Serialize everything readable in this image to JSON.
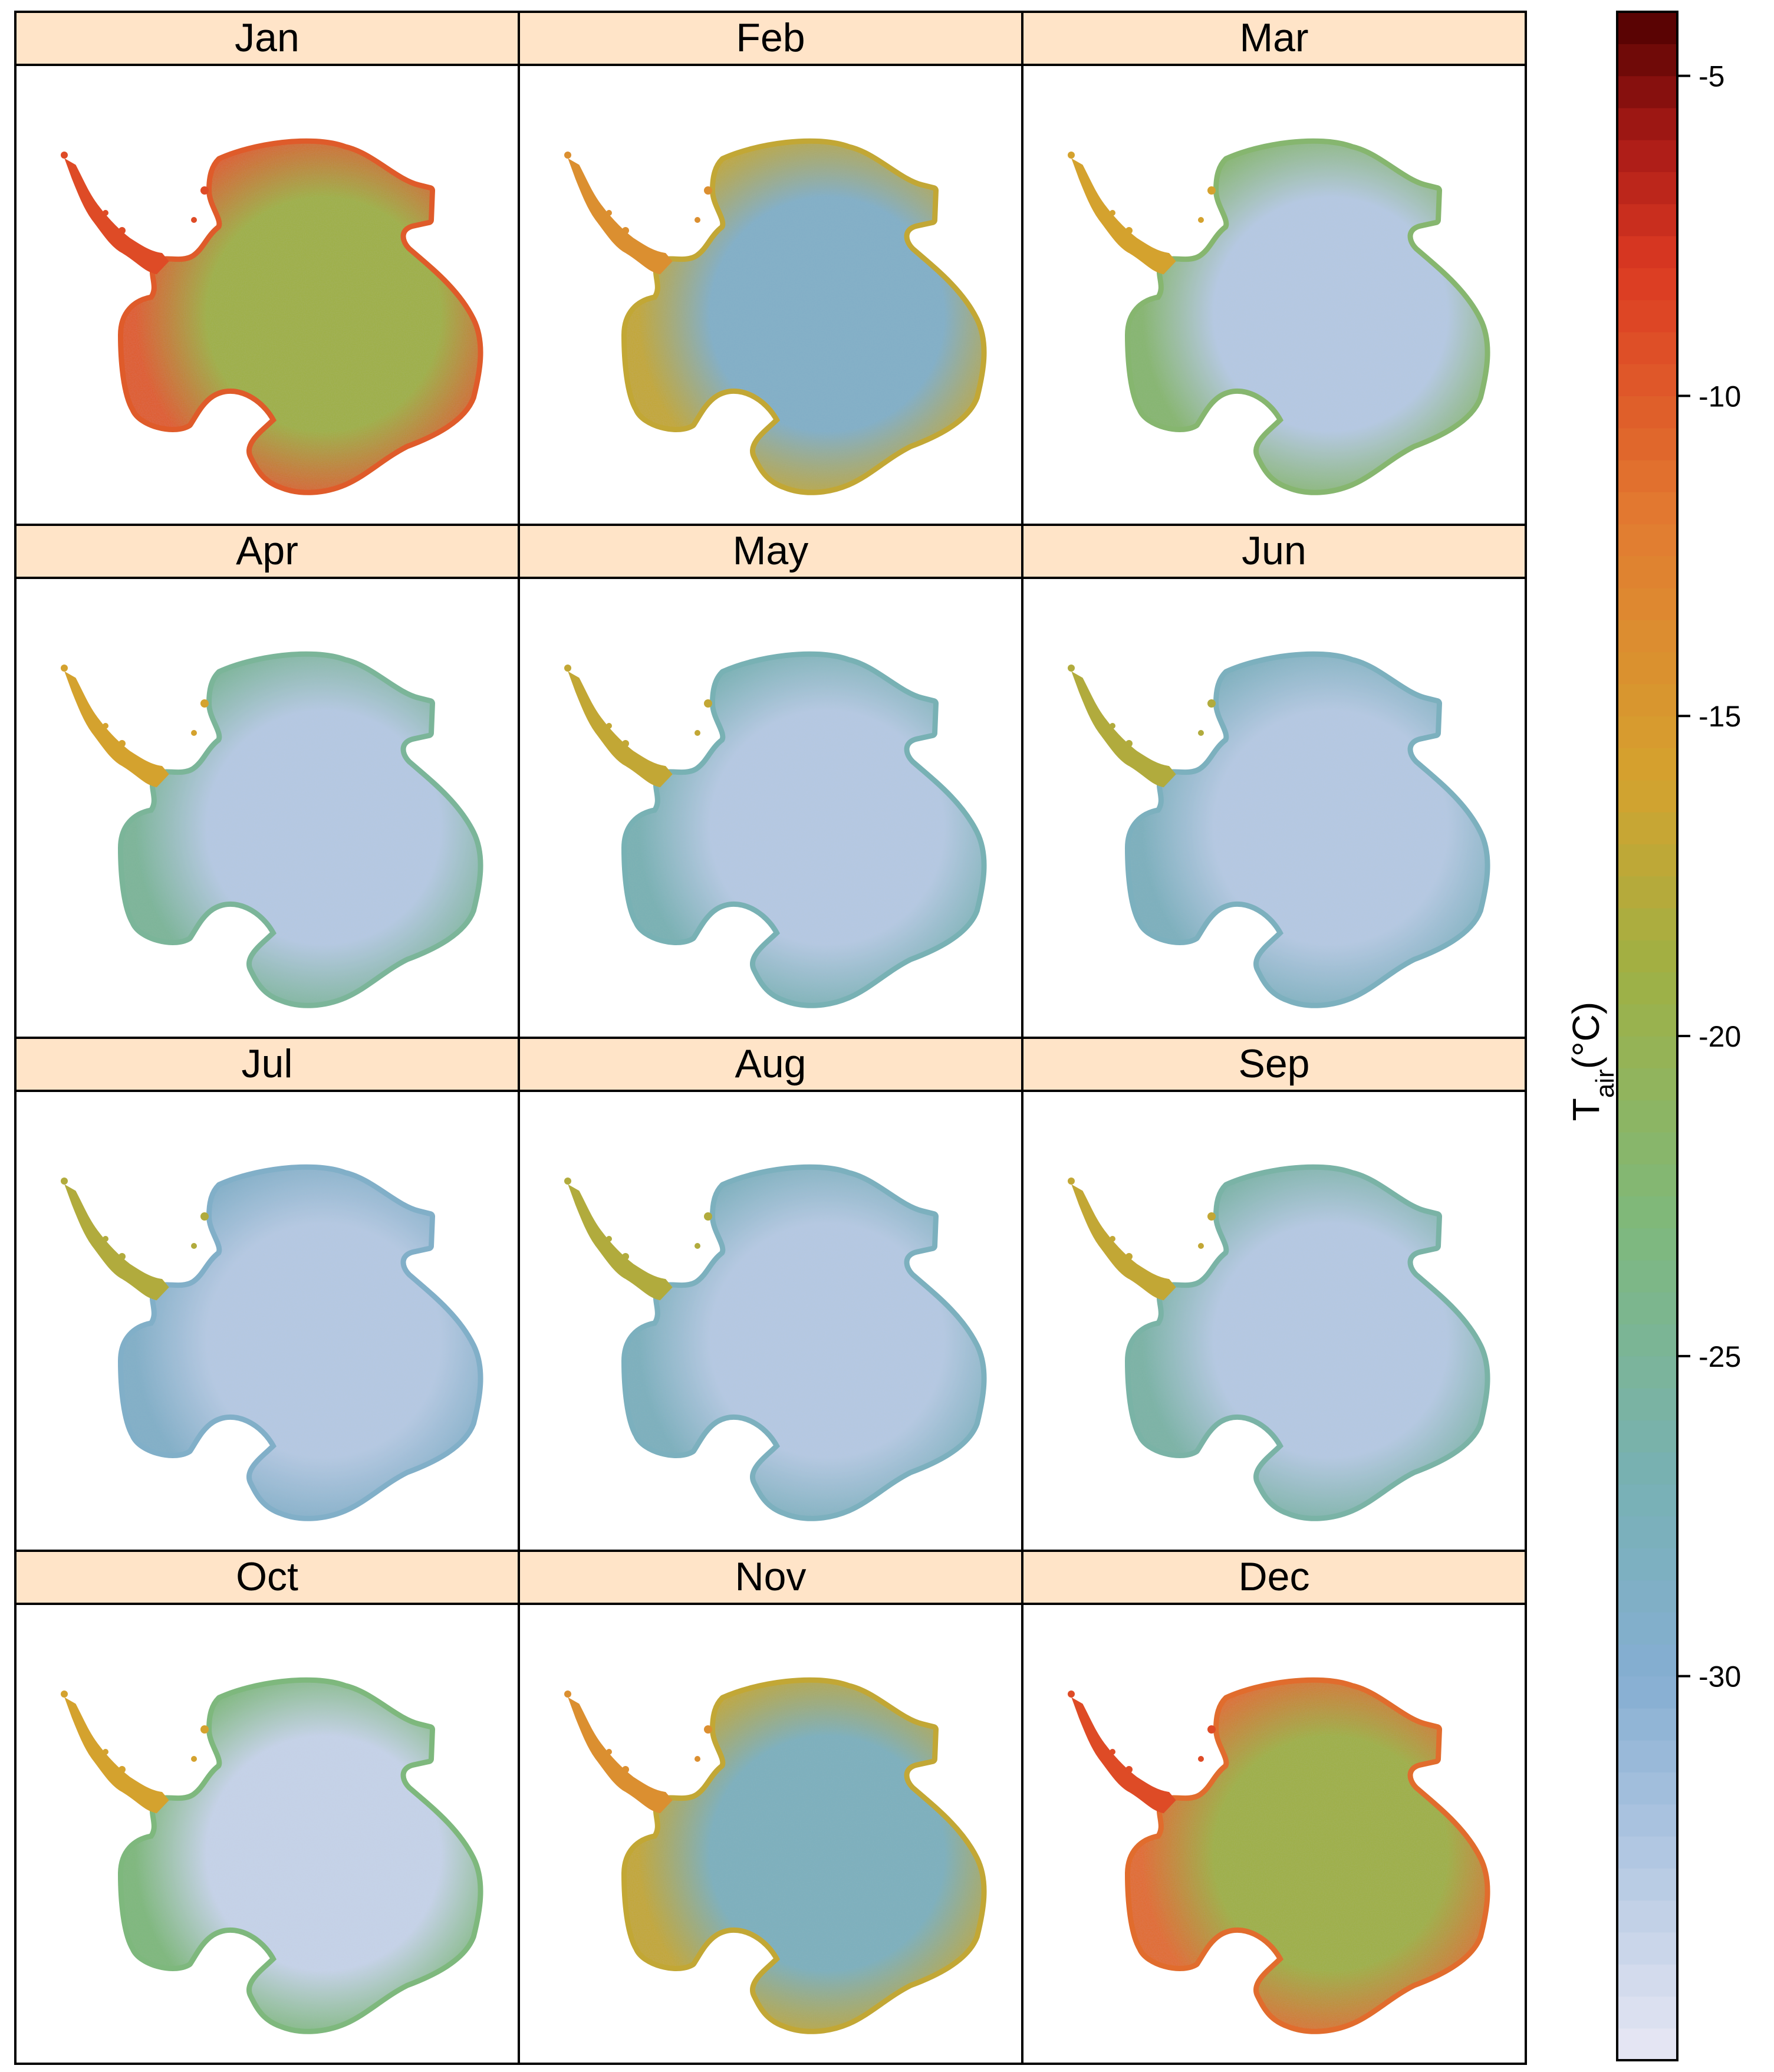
{
  "chart_data": {
    "type": "heatmap",
    "layout": "lattice small multiples, 4 rows x 3 columns",
    "panels": [
      {
        "label": "Jan",
        "interior_level": -19,
        "coast_level": -10,
        "peninsula_level": -9
      },
      {
        "label": "Feb",
        "interior_level": -29,
        "coast_level": -17,
        "peninsula_level": -14
      },
      {
        "label": "Mar",
        "interior_level": -33,
        "coast_level": -22,
        "peninsula_level": -16
      },
      {
        "label": "Apr",
        "interior_level": -33,
        "coast_level": -25,
        "peninsula_level": -16
      },
      {
        "label": "May",
        "interior_level": -33,
        "coast_level": -27,
        "peninsula_level": -17
      },
      {
        "label": "Jun",
        "interior_level": -33,
        "coast_level": -28,
        "peninsula_level": -18
      },
      {
        "label": "Jul",
        "interior_level": -33,
        "coast_level": -29,
        "peninsula_level": -18
      },
      {
        "label": "Aug",
        "interior_level": -33,
        "coast_level": -28,
        "peninsula_level": -18
      },
      {
        "label": "Sep",
        "interior_level": -33,
        "coast_level": -26,
        "peninsula_level": -17
      },
      {
        "label": "Oct",
        "interior_level": -34,
        "coast_level": -23,
        "peninsula_level": -16
      },
      {
        "label": "Nov",
        "interior_level": -28,
        "coast_level": -17,
        "peninsula_level": -14
      },
      {
        "label": "Dec",
        "interior_level": -19,
        "coast_level": -11,
        "peninsula_level": -9
      }
    ],
    "colorbar": {
      "label_main": "T",
      "label_sub": "air",
      "label_unit": "(°C)",
      "range": [
        -36,
        -4
      ],
      "ticks": [
        -5,
        -10,
        -15,
        -20,
        -25,
        -30
      ],
      "tick_labels": [
        "-5",
        "-10",
        "-15",
        "-20",
        "-25",
        "-30"
      ],
      "color_stops": [
        {
          "value": -36,
          "color": "#e8e8f4"
        },
        {
          "value": -33,
          "color": "#b5c9e3"
        },
        {
          "value": -30,
          "color": "#85aed2"
        },
        {
          "value": -27,
          "color": "#78b1b4"
        },
        {
          "value": -23,
          "color": "#7eb87d"
        },
        {
          "value": -19,
          "color": "#9fb044"
        },
        {
          "value": -16,
          "color": "#d4a22e"
        },
        {
          "value": -12,
          "color": "#e27c31"
        },
        {
          "value": -8,
          "color": "#dc3a22"
        },
        {
          "value": -6,
          "color": "#a81a16"
        },
        {
          "value": -4,
          "color": "#4f0000"
        }
      ]
    },
    "strip_color": "#ffe4c8",
    "grid": false,
    "legend": "right"
  }
}
